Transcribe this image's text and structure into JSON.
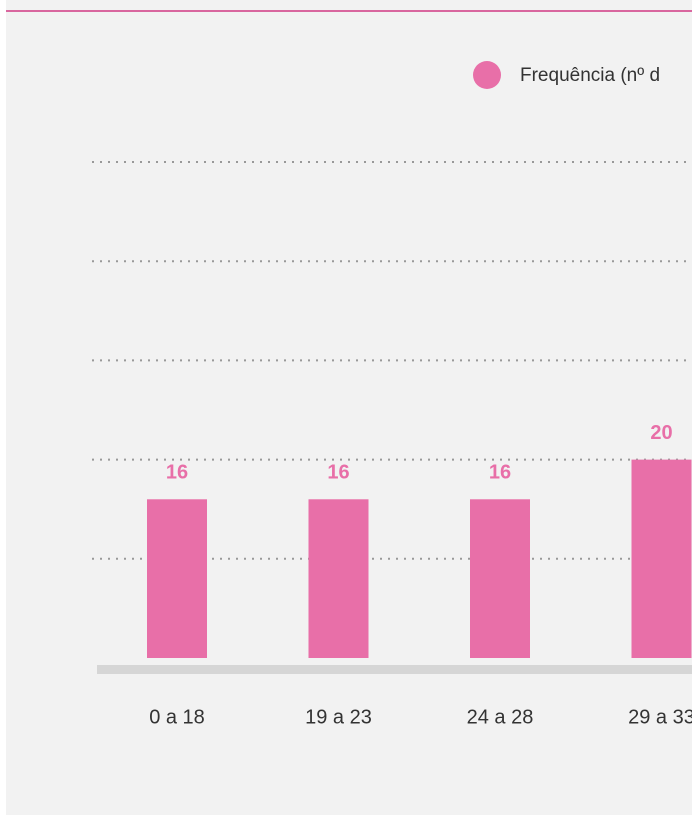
{
  "chart_data": {
    "type": "bar",
    "legend": "Frequência (nº d",
    "categories": [
      "0 a 18",
      "19 a 23",
      "24 a 28",
      "29 a 33"
    ],
    "values": [
      16,
      16,
      16,
      20
    ],
    "color": "#e86fa8",
    "ylim": [
      0,
      50
    ],
    "yticks": [
      10,
      20,
      30,
      40,
      50
    ],
    "grid": true
  }
}
